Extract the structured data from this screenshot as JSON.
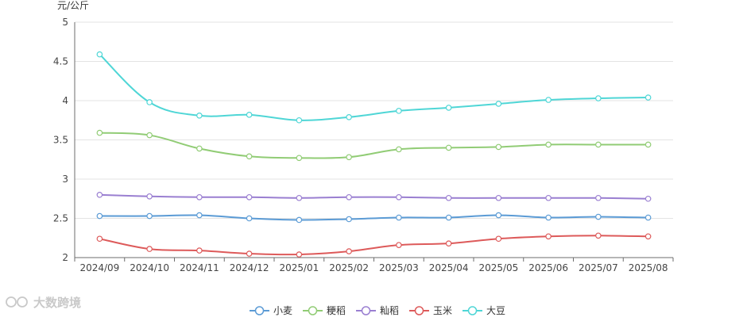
{
  "chart_data": {
    "type": "line",
    "ylabel": "元/公斤",
    "ylim": [
      2,
      5
    ],
    "y_ticks": [
      "2",
      "2.5",
      "3",
      "3.5",
      "4",
      "4.5",
      "5"
    ],
    "y_tick_values": [
      2,
      2.5,
      3,
      3.5,
      4,
      4.5,
      5
    ],
    "categories": [
      "2024/09",
      "2024/10",
      "2024/11",
      "2024/12",
      "2025/01",
      "2025/02",
      "2025/03",
      "2025/04",
      "2025/05",
      "2025/06",
      "2025/07",
      "2025/08"
    ],
    "grid": true,
    "legend_position": "bottom",
    "series": [
      {
        "name": "小麦",
        "color": "#5b9bd5",
        "values": [
          2.53,
          2.53,
          2.54,
          2.5,
          2.48,
          2.49,
          2.51,
          2.51,
          2.54,
          2.51,
          2.52,
          2.51
        ]
      },
      {
        "name": "粳稻",
        "color": "#91cc75",
        "values": [
          3.59,
          3.56,
          3.39,
          3.29,
          3.27,
          3.28,
          3.38,
          3.4,
          3.41,
          3.44,
          3.44,
          3.44
        ]
      },
      {
        "name": "籼稻",
        "color": "#9a7fd1",
        "values": [
          2.8,
          2.78,
          2.77,
          2.77,
          2.76,
          2.77,
          2.77,
          2.76,
          2.76,
          2.76,
          2.76,
          2.75
        ]
      },
      {
        "name": "玉米",
        "color": "#dd5a5a",
        "values": [
          2.24,
          2.11,
          2.09,
          2.05,
          2.04,
          2.08,
          2.16,
          2.18,
          2.24,
          2.27,
          2.28,
          2.27
        ]
      },
      {
        "name": "大豆",
        "color": "#4fd6d6",
        "values": [
          4.59,
          3.98,
          3.81,
          3.82,
          3.75,
          3.79,
          3.87,
          3.91,
          3.96,
          4.01,
          4.03,
          4.04
        ]
      }
    ]
  },
  "watermark": {
    "text": "大数跨境"
  }
}
